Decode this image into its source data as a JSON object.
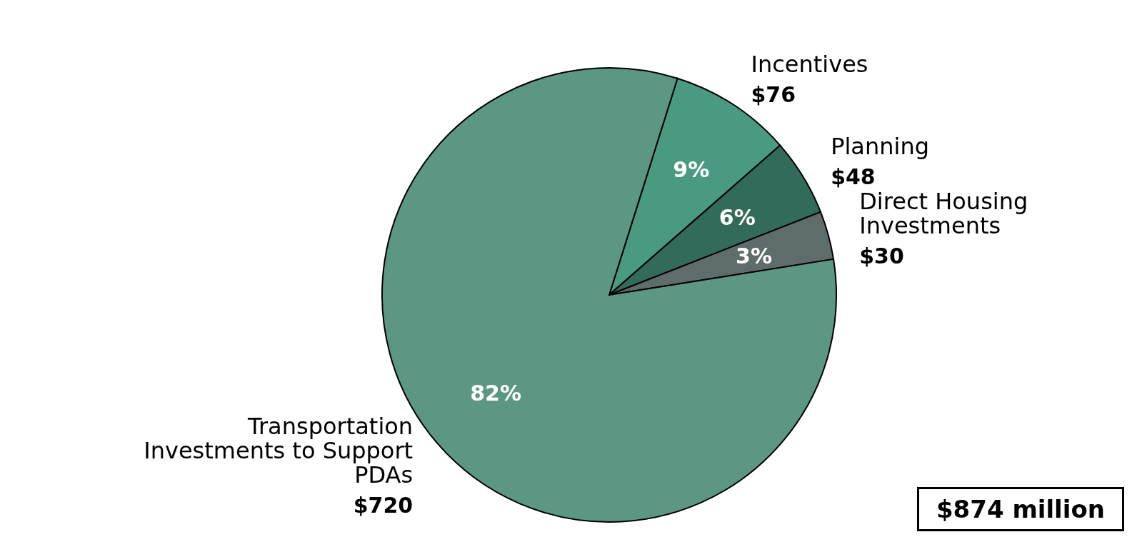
{
  "chart_data": {
    "type": "pie",
    "categories": [
      "Incentives",
      "Planning",
      "Direct Housing Investments",
      "Transportation Investments to Support PDAs"
    ],
    "values": [
      76,
      48,
      30,
      720
    ],
    "value_labels": [
      "$76",
      "$48",
      "$30",
      "$720"
    ],
    "colors": [
      "#4a9a82",
      "#336b5a",
      "#5f6d6a",
      "#5c9784"
    ],
    "annotations": [
      {
        "text": "9%",
        "x": "Incentives"
      },
      {
        "text": "6%",
        "x": "Planning"
      },
      {
        "text": "3%",
        "x": "Direct Housing Investments"
      },
      {
        "text": "82%",
        "x": "Transportation Investments to Support PDAs"
      },
      "$874 million"
    ]
  }
}
